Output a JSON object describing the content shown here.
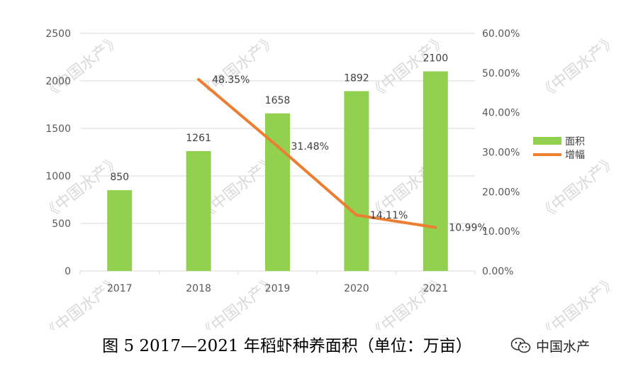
{
  "chart_data": {
    "type": "bar+line",
    "categories": [
      "2017",
      "2018",
      "2019",
      "2020",
      "2021"
    ],
    "series": [
      {
        "name": "面积",
        "type": "bar",
        "axis": "left",
        "values": [
          850,
          1261,
          1658,
          1892,
          2100
        ],
        "labels": [
          "850",
          "1261",
          "1658",
          "1892",
          "2100"
        ]
      },
      {
        "name": "增幅",
        "type": "line",
        "axis": "right",
        "values": [
          null,
          48.35,
          31.48,
          14.11,
          10.99
        ],
        "labels": [
          "",
          "48.35%",
          "31.48%",
          "14.11%",
          "10.99%"
        ]
      }
    ],
    "y_left": {
      "range": [
        0,
        2500
      ],
      "ticks": [
        "0",
        "500",
        "1000",
        "1500",
        "2000",
        "2500"
      ]
    },
    "y_right": {
      "range": [
        0,
        60
      ],
      "ticks": [
        "0.00%",
        "10.00%",
        "20.00%",
        "30.00%",
        "40.00%",
        "50.00%",
        "60.00%"
      ]
    },
    "grid": true,
    "legend_position": "right",
    "colors": {
      "bar": "#92d050",
      "line": "#ed7d31",
      "grid": "#d9d9d9"
    }
  },
  "caption": "图 5 2017—2021 年稻虾种养面积（单位：万亩）",
  "brand": {
    "text": "中国水产",
    "icon": "wechat-icon"
  },
  "watermark_text": "《中国水产》"
}
